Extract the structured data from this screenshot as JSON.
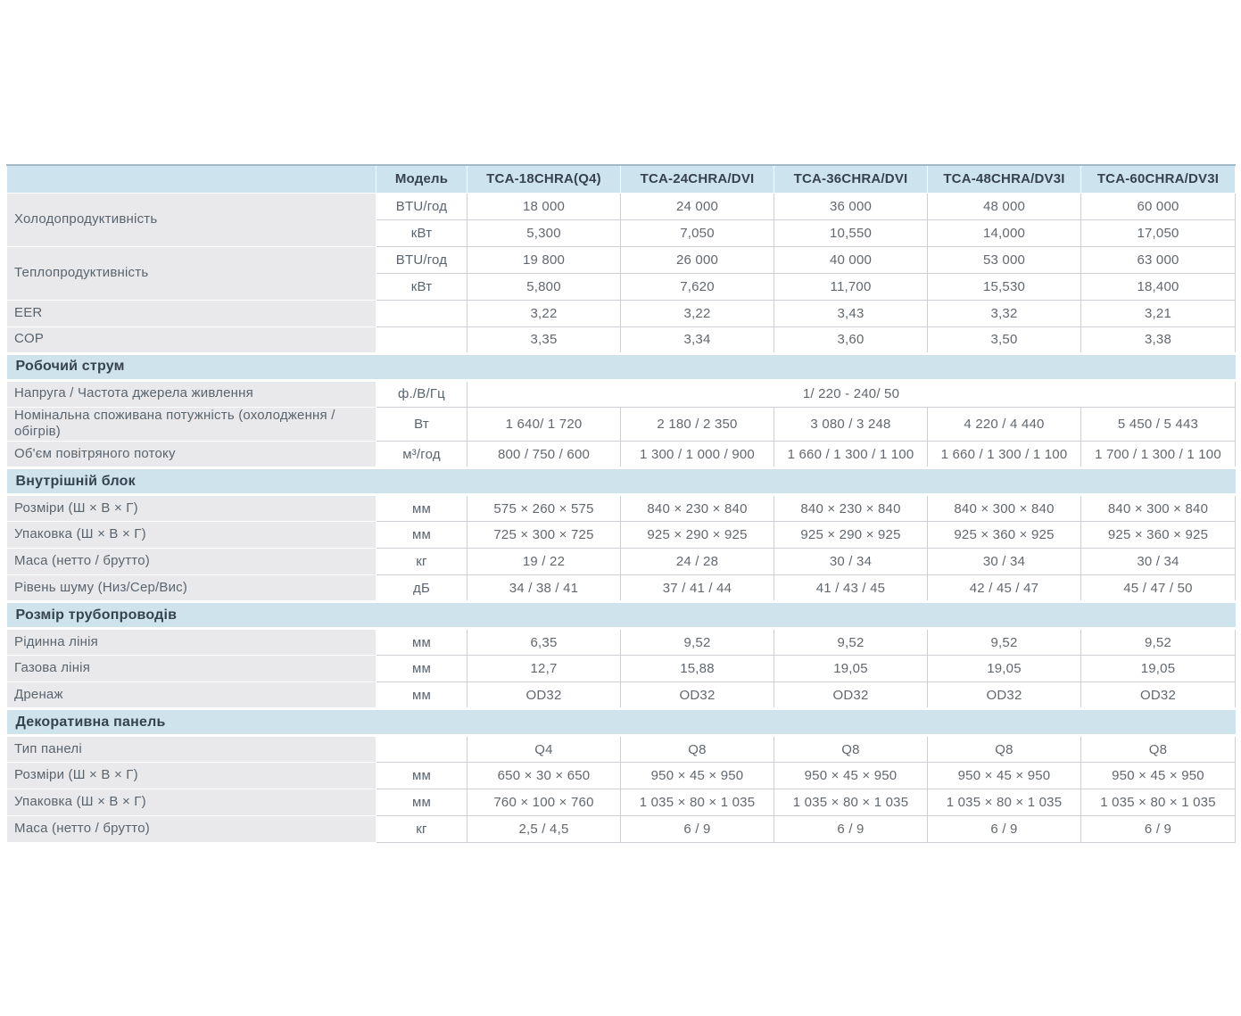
{
  "table": {
    "colors": {
      "header_bg": "#cde4ee",
      "section_bg": "#cfe3ed",
      "label_bg": "#e9e9eb",
      "border": "#ccd0d4",
      "header_top_border": "#a3bac7",
      "header_text": "#36434f",
      "label_text": "#5a646e",
      "value_text": "#62686e"
    },
    "header": {
      "model_label": "Модель",
      "models": [
        "TCA-18CHRA(Q4)",
        "TCA-24CHRA/DVI",
        "TCA-36CHRA/DVI",
        "TCA-48CHRA/DV3I",
        "TCA-60CHRA/DV3I"
      ]
    },
    "rows": [
      {
        "type": "group",
        "label": "Холодопродуктивність",
        "sub": [
          {
            "unit": "BTU/год",
            "values": [
              "18 000",
              "24 000",
              "36 000",
              "48 000",
              "60 000"
            ]
          },
          {
            "unit": "кВт",
            "values": [
              "5,300",
              "7,050",
              "10,550",
              "14,000",
              "17,050"
            ]
          }
        ]
      },
      {
        "type": "group",
        "label": "Теплопродуктивність",
        "sub": [
          {
            "unit": "BTU/год",
            "values": [
              "19 800",
              "26 000",
              "40 000",
              "53 000",
              "63 000"
            ]
          },
          {
            "unit": "кВт",
            "values": [
              "5,800",
              "7,620",
              "11,700",
              "15,530",
              "18,400"
            ]
          }
        ]
      },
      {
        "type": "row",
        "label": "EER",
        "unit": "",
        "values": [
          "3,22",
          "3,22",
          "3,43",
          "3,32",
          "3,21"
        ]
      },
      {
        "type": "row",
        "label": "COP",
        "unit": "",
        "values": [
          "3,35",
          "3,34",
          "3,60",
          "3,50",
          "3,38"
        ]
      },
      {
        "type": "section",
        "label": "Робочий струм"
      },
      {
        "type": "row",
        "label": "Напруга / Частота джерела живлення",
        "unit": "ф./В/Гц",
        "merged": "1/ 220 - 240/ 50"
      },
      {
        "type": "row",
        "label": "Номінальна споживана потужність (охолодження / обігрів)",
        "unit": "Вт",
        "values": [
          "1 640/ 1 720",
          "2 180 / 2 350",
          "3 080 / 3 248",
          "4 220 / 4 440",
          "5 450 / 5 443"
        ]
      },
      {
        "type": "row",
        "label": "Об'єм повітряного потоку",
        "unit": "м³/год",
        "values": [
          "800 / 750 / 600",
          "1 300 / 1 000 / 900",
          "1 660 / 1 300 / 1 100",
          "1 660 / 1 300 / 1 100",
          "1 700 / 1 300 / 1 100"
        ]
      },
      {
        "type": "section",
        "label": "Внутрішній блок"
      },
      {
        "type": "row",
        "label": "Розміри (Ш × В × Г)",
        "unit": "мм",
        "values": [
          "575 × 260 × 575",
          "840 × 230 × 840",
          "840 × 230 × 840",
          "840 × 300 × 840",
          "840 × 300 × 840"
        ]
      },
      {
        "type": "row",
        "label": "Упаковка (Ш × В × Г)",
        "unit": "мм",
        "values": [
          "725 × 300 × 725",
          "925 × 290 × 925",
          "925 × 290 × 925",
          "925 × 360 × 925",
          "925 × 360 × 925"
        ]
      },
      {
        "type": "row",
        "label": "Маса (нетто / брутто)",
        "unit": "кг",
        "values": [
          "19 / 22",
          "24 / 28",
          "30 / 34",
          "30 / 34",
          "30 / 34"
        ]
      },
      {
        "type": "row",
        "label": "Рівень шуму (Низ/Сер/Вис)",
        "unit": "дБ",
        "values": [
          "34 / 38 / 41",
          "37 / 41 / 44",
          "41 / 43 / 45",
          "42 / 45 / 47",
          "45 / 47 / 50"
        ]
      },
      {
        "type": "section",
        "label": "Розмір трубопроводів"
      },
      {
        "type": "row",
        "label": "Рідинна лінія",
        "unit": "мм",
        "values": [
          "6,35",
          "9,52",
          "9,52",
          "9,52",
          "9,52"
        ]
      },
      {
        "type": "row",
        "label": "Газова лінія",
        "unit": "мм",
        "values": [
          "12,7",
          "15,88",
          "19,05",
          "19,05",
          "19,05"
        ]
      },
      {
        "type": "row",
        "label": "Дренаж",
        "unit": "мм",
        "values": [
          "OD32",
          "OD32",
          "OD32",
          "OD32",
          "OD32"
        ]
      },
      {
        "type": "section",
        "label": "Декоративна панель"
      },
      {
        "type": "row",
        "label": "Тип панелі",
        "unit": "",
        "values": [
          "Q4",
          "Q8",
          "Q8",
          "Q8",
          "Q8"
        ]
      },
      {
        "type": "row",
        "label": "Розміри (Ш × В × Г)",
        "unit": "мм",
        "values": [
          "650 × 30 × 650",
          "950 × 45 × 950",
          "950 × 45 × 950",
          "950 × 45 × 950",
          "950 × 45 × 950"
        ]
      },
      {
        "type": "row",
        "label": "Упаковка (Ш × В × Г)",
        "unit": "мм",
        "values": [
          "760 × 100 × 760",
          "1 035 × 80 × 1 035",
          "1 035 × 80 × 1 035",
          "1 035 × 80 × 1 035",
          "1 035 × 80 × 1 035"
        ]
      },
      {
        "type": "row",
        "label": "Маса (нетто / брутто)",
        "unit": "кг",
        "values": [
          "2,5 / 4,5",
          "6 / 9",
          "6 / 9",
          "6 / 9",
          "6 / 9"
        ]
      }
    ]
  }
}
